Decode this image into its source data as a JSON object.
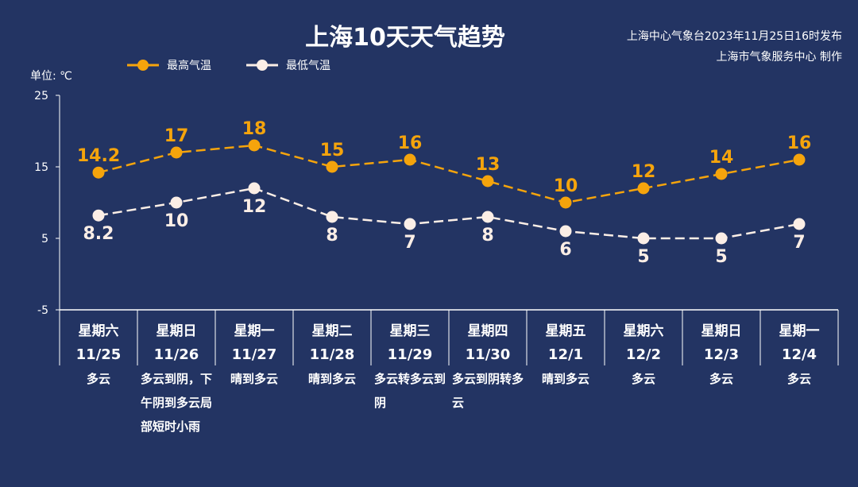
{
  "header": {
    "title": "上海10天天气趋势",
    "source_line1": "上海中心气象台2023年11月25日16时发布",
    "source_line2": "上海市气象服务中心 制作"
  },
  "chart_data": {
    "type": "line",
    "title": "上海10天天气趋势",
    "ylabel": "单位: ℃",
    "ylim": [
      -5,
      25
    ],
    "yticks": [
      "25",
      "15",
      "5",
      "-5"
    ],
    "grid": false,
    "legend_placement": "top-left",
    "weekdays": [
      "星期六",
      "星期日",
      "星期一",
      "星期二",
      "星期三",
      "星期四",
      "星期五",
      "星期六",
      "星期日",
      "星期一"
    ],
    "categories": [
      "11/25",
      "11/26",
      "11/27",
      "11/28",
      "11/29",
      "11/30",
      "12/1",
      "12/2",
      "12/3",
      "12/4"
    ],
    "weather": [
      "多云",
      "多云到阴，下午阴到多云局部短时小雨",
      "晴到多云",
      "晴到多云",
      "多云转多云到阴",
      "多云到阴转多云",
      "晴到多云",
      "多云",
      "多云",
      "多云"
    ],
    "series": [
      {
        "name": "最高气温",
        "color": "#f5a40c",
        "values": [
          14.2,
          17,
          18,
          15,
          16,
          13,
          10,
          12,
          14,
          16
        ],
        "labels": [
          "14.2",
          "17",
          "18",
          "15",
          "16",
          "13",
          "10",
          "12",
          "14",
          "16"
        ]
      },
      {
        "name": "最低气温",
        "color": "#fbeee6",
        "values": [
          8.2,
          10,
          12,
          8,
          7,
          8,
          6,
          5,
          5,
          7
        ],
        "labels": [
          "8.2",
          "10",
          "12",
          "8",
          "7",
          "8",
          "6",
          "5",
          "5",
          "7"
        ]
      }
    ]
  }
}
